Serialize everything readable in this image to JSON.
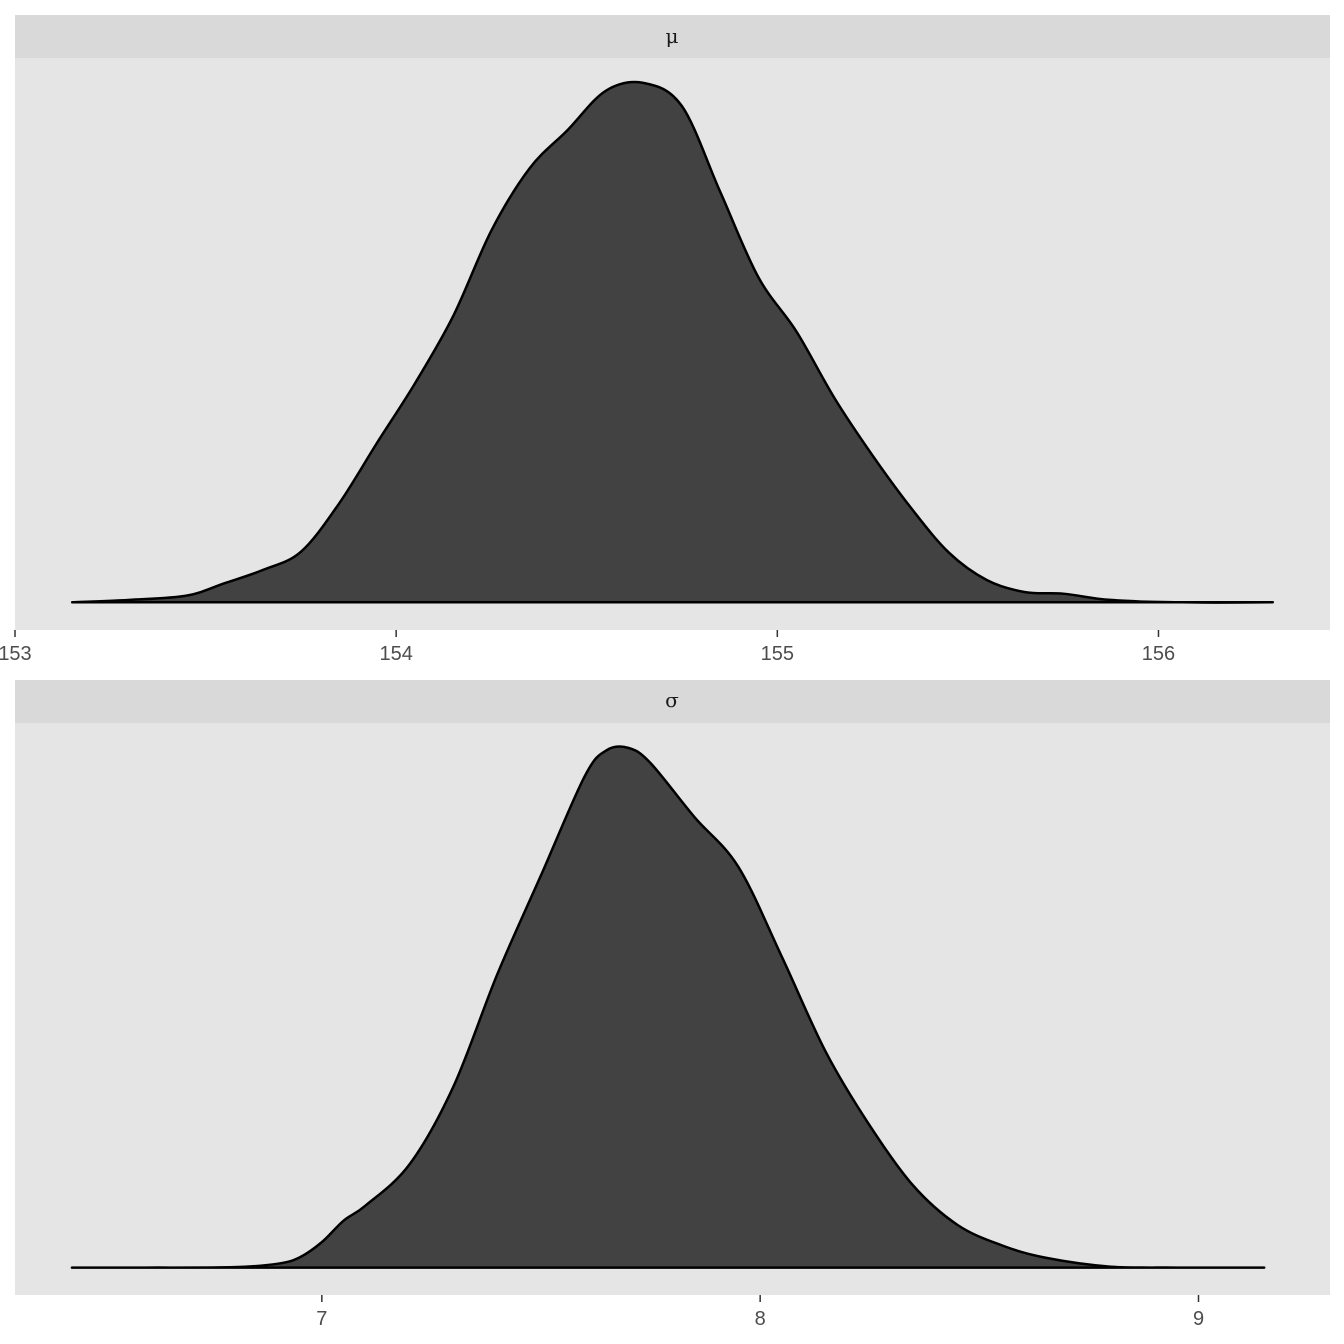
{
  "chart_data": [
    {
      "type": "area",
      "panel": "μ",
      "x_ticks": [
        153,
        154,
        155,
        156
      ],
      "xlim": [
        153.0,
        156.45
      ],
      "fill_color": "#424242",
      "outline_color": "#000000",
      "panel_background": "#e5e5e5",
      "strip_background": "#d9d9d9",
      "x": [
        153.15,
        153.3,
        153.45,
        153.55,
        153.65,
        153.75,
        153.85,
        153.95,
        154.05,
        154.15,
        154.25,
        154.35,
        154.45,
        154.55,
        154.65,
        154.75,
        154.85,
        154.95,
        155.05,
        155.15,
        155.25,
        155.35,
        155.45,
        155.55,
        155.65,
        155.75,
        155.85,
        155.95,
        156.05,
        156.15,
        156.3
      ],
      "y": [
        0.2,
        0.8,
        1.9,
        5.1,
        8.5,
        13.2,
        25.6,
        41.3,
        56.7,
        74.0,
        96.0,
        112.0,
        121.9,
        132.0,
        134.0,
        128.0,
        106.0,
        84.0,
        70.0,
        52.8,
        38.0,
        24.6,
        13.0,
        5.9,
        2.8,
        2.4,
        1.0,
        0.4,
        0.2,
        0.1,
        0.2
      ]
    },
    {
      "type": "area",
      "panel": "σ",
      "x_ticks": [
        7,
        8,
        9
      ],
      "xlim": [
        6.3,
        9.3
      ],
      "fill_color": "#424242",
      "outline_color": "#000000",
      "panel_background": "#e5e5e5",
      "strip_background": "#d9d9d9",
      "x": [
        6.43,
        6.6,
        6.8,
        6.9,
        6.95,
        7.0,
        7.05,
        7.1,
        7.2,
        7.3,
        7.4,
        7.5,
        7.6,
        7.65,
        7.7,
        7.75,
        7.85,
        7.95,
        8.05,
        8.15,
        8.25,
        8.35,
        8.45,
        8.55,
        8.65,
        8.8,
        8.95,
        9.15
      ],
      "y": [
        0.1,
        0.1,
        0.2,
        1.0,
        2.5,
        6.0,
        11.0,
        14.5,
        24.0,
        42.0,
        68.0,
        91.0,
        114.0,
        120.0,
        120.5,
        117.0,
        104.5,
        93.0,
        72.0,
        50.0,
        33.0,
        19.0,
        10.0,
        5.3,
        2.4,
        0.3,
        0.1,
        0.1
      ]
    }
  ]
}
